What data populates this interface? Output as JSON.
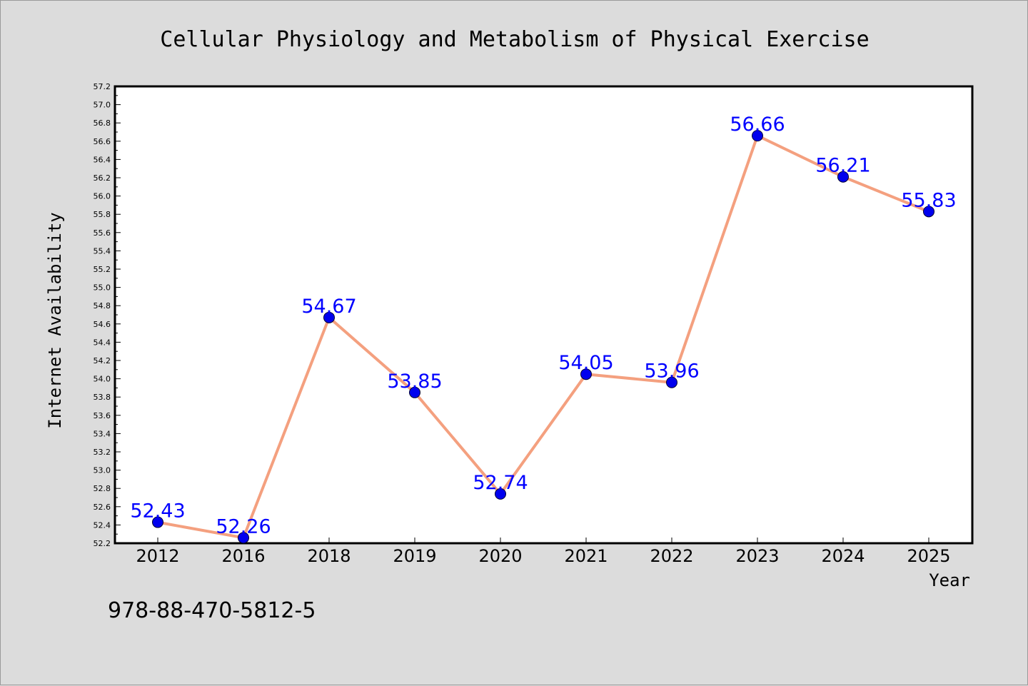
{
  "chart_data": {
    "type": "line",
    "title": "Cellular Physiology and Metabolism of Physical Exercise",
    "xlabel": "Year",
    "ylabel": "Internet Availability",
    "categories": [
      "2012",
      "2016",
      "2018",
      "2019",
      "2020",
      "2021",
      "2022",
      "2023",
      "2024",
      "2025"
    ],
    "series": [
      {
        "values": [
          52.43,
          52.26,
          54.67,
          53.85,
          52.74,
          54.05,
          53.96,
          56.66,
          56.21,
          55.83
        ],
        "labels": [
          "52.43",
          "52.26",
          "54.67",
          "53.85",
          "52.74",
          "54.05",
          "53.96",
          "56.66",
          "56.21",
          "55.83"
        ],
        "line_color": "#f4a07f",
        "marker_color": "#0000ee"
      }
    ],
    "ylim": [
      52.2,
      57.2
    ],
    "yticks": [
      "52.2",
      "52.4",
      "52.6",
      "52.8",
      "53.0",
      "53.2",
      "53.4",
      "53.6",
      "53.8",
      "54.0",
      "54.2",
      "54.4",
      "54.6",
      "54.8",
      "55.0",
      "55.2",
      "55.4",
      "55.6",
      "55.8",
      "56.0",
      "56.2",
      "56.4",
      "56.6",
      "56.8",
      "57.0",
      "57.2"
    ],
    "grid": false,
    "legend": "none"
  },
  "annotation": "978-88-470-5812-5"
}
